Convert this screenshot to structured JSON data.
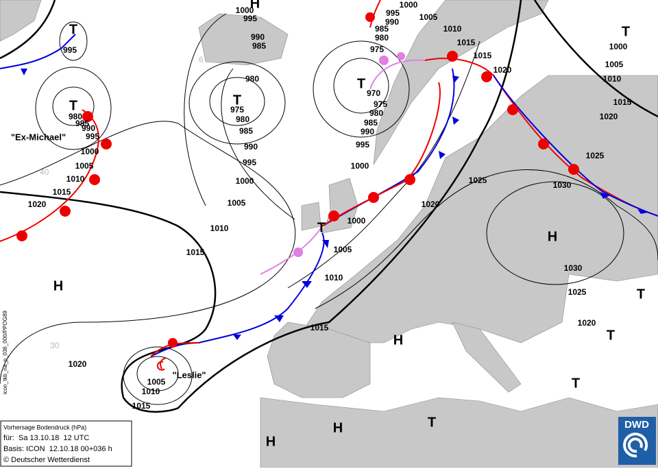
{
  "info_box": {
    "title": "Vorhersage Bodendruck (hPa)",
    "valid": "für:  Sa 13.10.18  12 UTC",
    "basis": "Basis: ICON  12.10.18 00+036 h",
    "copyright": "© Deutscher Wetterdienst"
  },
  "logo": "DWD",
  "product_id": "icon_tkb_na_p_036_000/PPOG89",
  "storm_names": [
    "\"Ex-Michael\"",
    "\"Leslie\""
  ],
  "pressure_centers": [
    "T",
    "T",
    "T",
    "T",
    "T",
    "T",
    "H",
    "H",
    "H",
    "H",
    "H",
    "H",
    "T",
    "T",
    "T",
    "T"
  ],
  "isobar_labels": [
    1000,
    995,
    990,
    985,
    980,
    975,
    980,
    985,
    990,
    995,
    1000,
    1005,
    1010,
    1015,
    1020,
    1015,
    1010,
    1005,
    995,
    980,
    985,
    990,
    995,
    1000,
    1005,
    1010,
    1015,
    1020,
    1000,
    995,
    990,
    985,
    980,
    975,
    1005,
    1010,
    1015,
    1015,
    1020,
    970,
    975,
    980,
    985,
    990,
    995,
    1000,
    1000,
    1005,
    1010,
    1015,
    1020,
    1025,
    1030,
    1025,
    1020,
    1015,
    1010,
    1005,
    1000,
    1030,
    1025,
    1020
  ],
  "grid_labels": [
    "40",
    "30",
    "6"
  ]
}
